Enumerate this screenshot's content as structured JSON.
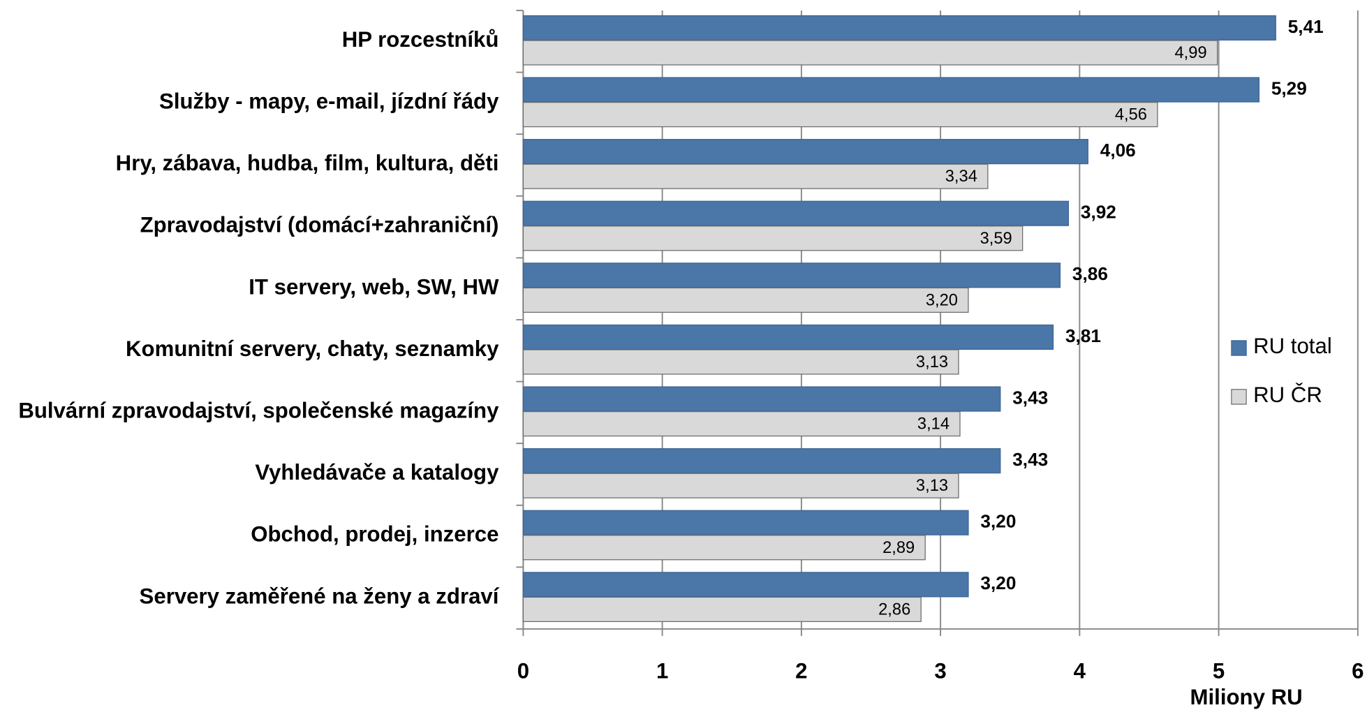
{
  "chart_data": {
    "type": "hbar",
    "x_label": "Miliony RU",
    "categories": [
      "HP rozcestníků",
      "Služby - mapy, e-mail, jízdní řády",
      "Hry, zábava, hudba, film, kultura, děti",
      "Zpravodajství (domácí+zahraniční)",
      "IT servery, web, SW, HW",
      "Komunitní servery, chaty, seznamky",
      "Bulvární zpravodajství, společenské magazíny",
      "Vyhledávače a katalogy",
      "Obchod, prodej, inzerce",
      "Servery zaměřené na ženy a zdraví"
    ],
    "series": [
      {
        "name": "RU total",
        "color": "#4a76a8",
        "values": [
          5.41,
          5.29,
          4.06,
          3.92,
          3.86,
          3.81,
          3.43,
          3.43,
          3.2,
          3.2
        ],
        "value_labels": [
          "5,41",
          "5,29",
          "4,06",
          "3,92",
          "3,86",
          "3,81",
          "3,43",
          "3,43",
          "3,20",
          "3,20"
        ]
      },
      {
        "name": "RU ČR",
        "color": "#d9d9d9",
        "values": [
          4.99,
          4.56,
          3.34,
          3.59,
          3.2,
          3.13,
          3.14,
          3.13,
          2.89,
          2.86
        ],
        "value_labels": [
          "4,99",
          "4,56",
          "3,34",
          "3,59",
          "3,20",
          "3,13",
          "3,14",
          "3,13",
          "2,89",
          "2,86"
        ]
      }
    ],
    "xlim": [
      0,
      6
    ],
    "xticks": [
      0,
      1,
      2,
      3,
      4,
      5,
      6
    ],
    "grid": true,
    "legend": "right"
  }
}
